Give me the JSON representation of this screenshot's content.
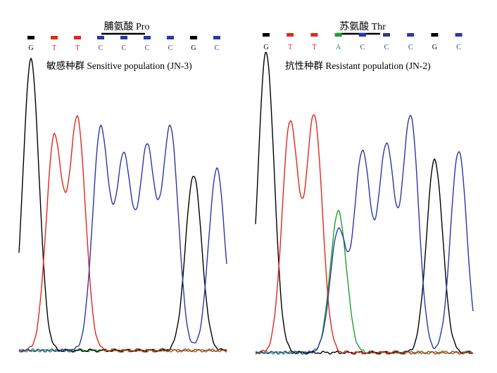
{
  "colors": {
    "G": "#000000",
    "T": "#e3261d",
    "C": "#2b36a8",
    "A": "#1aa32c"
  },
  "chart_data": [
    {
      "type": "line",
      "title": "脯氨酸 Pro",
      "subtitle": "敏感种群 Sensitive population (JN-3)",
      "bases": [
        "G",
        "T",
        "T",
        "C",
        "C",
        "C",
        "C",
        "G",
        "C"
      ],
      "codon_bases": [
        3,
        4,
        5
      ],
      "series": [
        {
          "base": "G",
          "peaks": [
            {
              "pos": 0,
              "height": 0.96
            },
            {
              "pos": 7,
              "height": 0.58
            }
          ]
        },
        {
          "base": "T",
          "peaks": [
            {
              "pos": 1,
              "height": 0.7
            },
            {
              "pos": 2,
              "height": 0.76
            }
          ]
        },
        {
          "base": "C",
          "peaks": [
            {
              "pos": 3,
              "height": 0.73
            },
            {
              "pos": 4,
              "height": 0.63
            },
            {
              "pos": 5,
              "height": 0.66
            },
            {
              "pos": 6,
              "height": 0.73
            },
            {
              "pos": 8,
              "height": 0.6
            }
          ]
        },
        {
          "base": "A",
          "peaks": []
        }
      ]
    },
    {
      "type": "line",
      "title": "苏氨酸 Thr",
      "subtitle": "抗性种群 Resistant population (JN-2)",
      "bases": [
        "G",
        "T",
        "T",
        "A",
        "C",
        "C",
        "C",
        "G",
        "C"
      ],
      "codon_bases": [
        3,
        4,
        5
      ],
      "series": [
        {
          "base": "G",
          "peaks": [
            {
              "pos": 0,
              "height": 0.98
            },
            {
              "pos": 7,
              "height": 0.63
            }
          ]
        },
        {
          "base": "T",
          "peaks": [
            {
              "pos": 1,
              "height": 0.75
            },
            {
              "pos": 2,
              "height": 0.77
            }
          ]
        },
        {
          "base": "C",
          "peaks": [
            {
              "pos": 3,
              "height": 0.4
            },
            {
              "pos": 4,
              "height": 0.65
            },
            {
              "pos": 5,
              "height": 0.67
            },
            {
              "pos": 6,
              "height": 0.77
            },
            {
              "pos": 8,
              "height": 0.66
            }
          ]
        },
        {
          "base": "A",
          "peaks": [
            {
              "pos": 3,
              "height": 0.46
            }
          ]
        }
      ]
    }
  ]
}
